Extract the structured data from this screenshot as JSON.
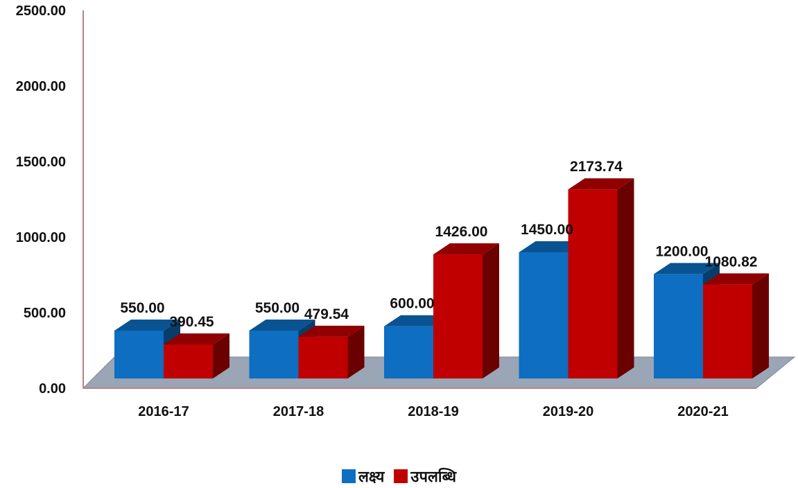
{
  "chart_data": {
    "type": "bar",
    "categories": [
      "2016-17",
      "2017-18",
      "2018-19",
      "2019-20",
      "2020-21"
    ],
    "series": [
      {
        "name": "लक्ष्य",
        "color": "#0d6ec2",
        "values": [
          550.0,
          550.0,
          600.0,
          1450.0,
          1200.0
        ],
        "labels": [
          "550.00",
          "550.00",
          "600.00",
          "1450.00",
          "1200.00"
        ]
      },
      {
        "name": "उपलब्धि",
        "color": "#c00000",
        "values": [
          390.45,
          479.54,
          1426.0,
          2173.74,
          1080.82
        ],
        "labels": [
          "390.45",
          "479.54",
          "1426.00",
          "2173.74",
          "1080.82"
        ]
      }
    ],
    "y_ticks": [
      "0.00",
      "500.00",
      "1000.00",
      "1500.00",
      "2000.00",
      "2500.00"
    ],
    "ylim": [
      0,
      2500
    ],
    "title": "",
    "xlabel": "",
    "ylabel": "",
    "legend_position": "bottom",
    "style": "3d-clustered-column",
    "grid": false
  }
}
